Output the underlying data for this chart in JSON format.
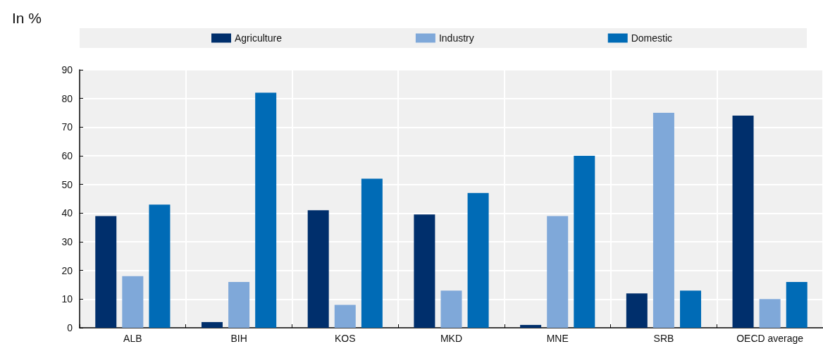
{
  "chart_data": {
    "type": "bar",
    "ylabel": "In %",
    "categories": [
      "ALB",
      "BIH",
      "KOS",
      "MKD",
      "MNE",
      "SRB",
      "OECD average"
    ],
    "series": [
      {
        "name": "Agriculture",
        "color": "#002f6c",
        "values": [
          39,
          2,
          41,
          39.5,
          1,
          12,
          74
        ]
      },
      {
        "name": "Industry",
        "color": "#7fa8d9",
        "values": [
          18,
          16,
          8,
          13,
          39,
          75,
          10
        ]
      },
      {
        "name": "Domestic",
        "color": "#006bb6",
        "values": [
          43,
          82,
          52,
          47,
          60,
          13,
          16
        ]
      }
    ],
    "ylim": [
      0,
      90
    ],
    "yticks": [
      0,
      10,
      20,
      30,
      40,
      50,
      60,
      70,
      80,
      90
    ],
    "grid": true,
    "legend": "top"
  }
}
